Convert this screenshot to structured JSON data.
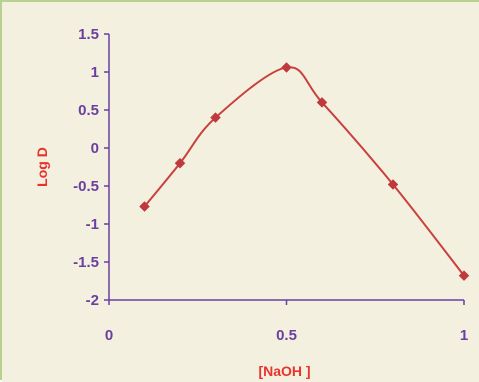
{
  "chart_data": {
    "type": "line",
    "xlabel": "[NaOH ]",
    "ylabel": "Log D",
    "xlim": [
      0,
      1
    ],
    "ylim": [
      -2,
      1.5
    ],
    "xticks": [
      0,
      0.5,
      1
    ],
    "xtick_labels": [
      "0",
      "0.5",
      "1"
    ],
    "yticks": [
      1.5,
      1,
      0.5,
      0,
      -0.5,
      -1,
      -1.5,
      -2
    ],
    "ytick_labels": [
      "1.5",
      "1",
      "0.5",
      "0",
      "-0.5",
      "-1",
      "-1.5",
      "-2"
    ],
    "grid": false,
    "smooth": true,
    "marker": "diamond",
    "series": [
      {
        "x": [
          0.1,
          0.2,
          0.3,
          0.5,
          0.6,
          0.8,
          1.0
        ],
        "values": [
          -0.77,
          -0.2,
          0.4,
          1.06,
          0.6,
          -0.48,
          -1.68
        ]
      }
    ]
  },
  "colors": {
    "background": "#f3f0e0",
    "frame": "#b9d18e",
    "axis": "#6b3fa0",
    "tick_labels": "#6b3fa0",
    "axis_titles": "#e8322a",
    "series_line": "#c8413d",
    "markers": "#c0393d"
  }
}
